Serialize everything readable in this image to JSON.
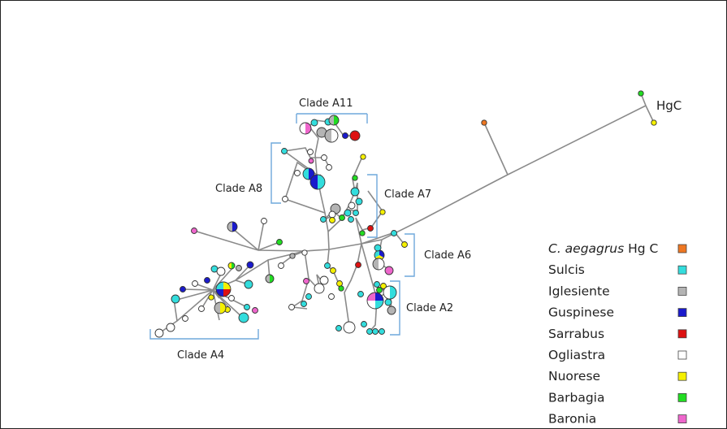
{
  "outgroup_label": "HgC",
  "clades": [
    {
      "id": "a11",
      "label": "Clade A11"
    },
    {
      "id": "a8",
      "label": "Clade A8"
    },
    {
      "id": "a7",
      "label": "Clade A7"
    },
    {
      "id": "a6",
      "label": "Clade A6"
    },
    {
      "id": "a2",
      "label": "Clade A2"
    },
    {
      "id": "a4",
      "label": "Clade A4"
    }
  ],
  "legend": [
    {
      "prefix_italic": "C. aegagrus",
      "suffix": " Hg C",
      "color": "#ee7722"
    },
    {
      "prefix_italic": "",
      "suffix": "Sulcis",
      "color": "#33dddd"
    },
    {
      "prefix_italic": "",
      "suffix": "Iglesiente",
      "color": "#b4b4b4"
    },
    {
      "prefix_italic": "",
      "suffix": "Guspinese",
      "color": "#1a1acc"
    },
    {
      "prefix_italic": "",
      "suffix": "Sarrabus",
      "color": "#dd1111"
    },
    {
      "prefix_italic": "",
      "suffix": "Ogliastra",
      "color": "#ffffff"
    },
    {
      "prefix_italic": "",
      "suffix": "Nuorese",
      "color": "#f5f000"
    },
    {
      "prefix_italic": "",
      "suffix": "Barbagia",
      "color": "#22dd22"
    },
    {
      "prefix_italic": "",
      "suffix": "Baronia",
      "color": "#ee66cc"
    }
  ]
}
